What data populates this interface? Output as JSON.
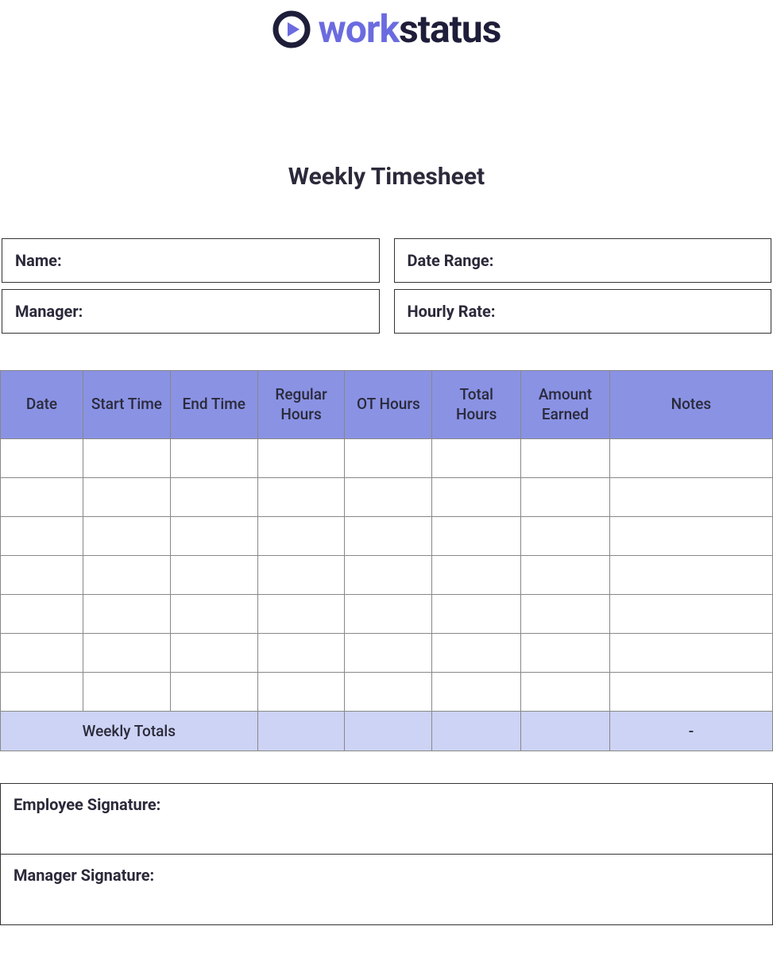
{
  "logo": {
    "part1": "work",
    "part2": "status",
    "brand_color": "#6b6be0",
    "dark_color": "#1e1e3a"
  },
  "title": "Weekly Timesheet",
  "info": {
    "name_label": "Name:",
    "date_range_label": "Date Range:",
    "manager_label": "Manager:",
    "hourly_rate_label": "Hourly Rate:"
  },
  "table": {
    "columns": [
      "Date",
      "Start Time",
      "End Time",
      "Regular Hours",
      "OT Hours",
      "Total Hours",
      "Amount Earned",
      "Notes"
    ],
    "header_bg": "#8a92e4",
    "totals_bg": "#cdd3f4",
    "border_color": "#888888",
    "row_count": 7,
    "rows": [
      [
        "",
        "",
        "",
        "",
        "",
        "",
        "",
        ""
      ],
      [
        "",
        "",
        "",
        "",
        "",
        "",
        "",
        ""
      ],
      [
        "",
        "",
        "",
        "",
        "",
        "",
        "",
        ""
      ],
      [
        "",
        "",
        "",
        "",
        "",
        "",
        "",
        ""
      ],
      [
        "",
        "",
        "",
        "",
        "",
        "",
        "",
        ""
      ],
      [
        "",
        "",
        "",
        "",
        "",
        "",
        "",
        ""
      ],
      [
        "",
        "",
        "",
        "",
        "",
        "",
        "",
        ""
      ]
    ],
    "totals_label": "Weekly Totals",
    "totals": {
      "regular": "",
      "ot": "",
      "total": "",
      "amount": "",
      "notes": "-"
    }
  },
  "signatures": {
    "employee": "Employee Signature:",
    "manager": "Manager Signature:"
  }
}
